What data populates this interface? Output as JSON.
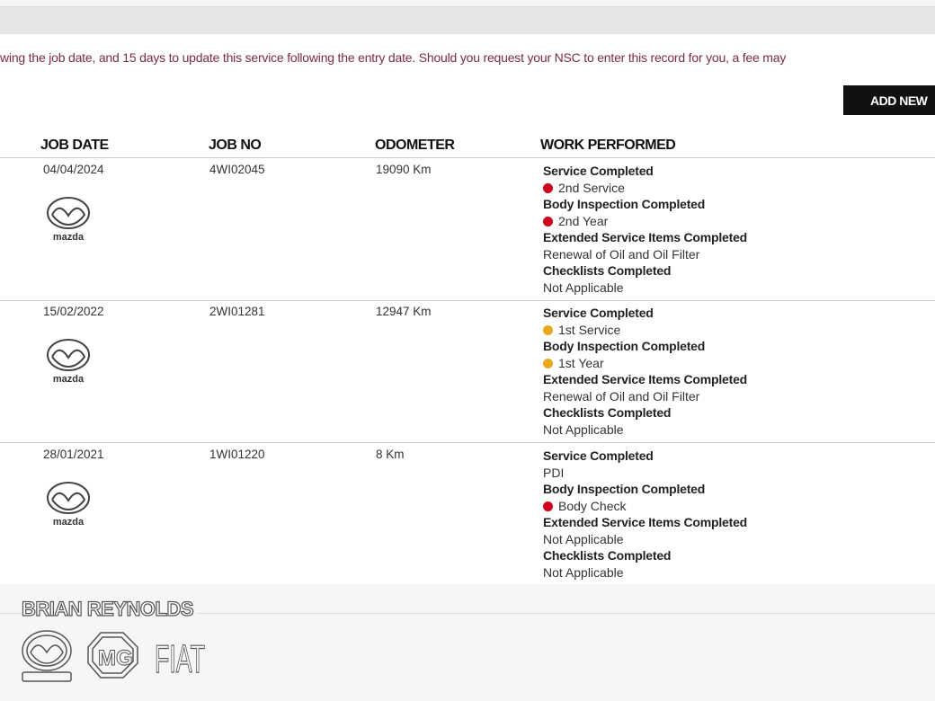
{
  "notice": "wing the job date, and 15 days to update this service following the entry date. Should you request your NSC to enter this record for you, a fee may",
  "add_button": "ADD NEW",
  "columns": [
    "JOB DATE",
    "JOB NO",
    "ODOMETER",
    "WORK PERFORMED"
  ],
  "colors": {
    "red": "#d0021b",
    "amber": "#e8a820",
    "notice": "#7a2a48"
  },
  "rows": [
    {
      "date": "04/04/2024",
      "job_no": "4WI02045",
      "odometer": "19090 Km",
      "logo": "mazda",
      "work": [
        {
          "t": "Service Completed",
          "bold": true
        },
        {
          "t": "2nd Service",
          "dot": "red"
        },
        {
          "t": "Body Inspection Completed",
          "bold": true
        },
        {
          "t": "2nd Year",
          "dot": "red"
        },
        {
          "t": "Extended Service Items Completed",
          "bold": true
        },
        {
          "t": "Renewal of Oil and Oil Filter"
        },
        {
          "t": "Checklists Completed",
          "bold": true
        },
        {
          "t": "Not Applicable"
        }
      ]
    },
    {
      "date": "15/02/2022",
      "job_no": "2WI01281",
      "odometer": "12947 Km",
      "logo": "mazda",
      "work": [
        {
          "t": "Service Completed",
          "bold": true
        },
        {
          "t": "1st Service",
          "dot": "amber"
        },
        {
          "t": "Body Inspection Completed",
          "bold": true
        },
        {
          "t": "1st Year",
          "dot": "amber"
        },
        {
          "t": "Extended Service Items Completed",
          "bold": true
        },
        {
          "t": "Renewal of Oil and Oil Filter"
        },
        {
          "t": "Checklists Completed",
          "bold": true
        },
        {
          "t": "Not Applicable"
        }
      ]
    },
    {
      "date": "28/01/2021",
      "job_no": "1WI01220",
      "odometer": "8 Km",
      "logo": "mazda",
      "work": [
        {
          "t": "Service Completed",
          "bold": true
        },
        {
          "t": "PDI"
        },
        {
          "t": "Body Inspection Completed",
          "bold": true
        },
        {
          "t": "Body Check",
          "dot": "red"
        },
        {
          "t": "Extended Service Items Completed",
          "bold": true
        },
        {
          "t": "Not Applicable"
        },
        {
          "t": "Checklists Completed",
          "bold": true
        },
        {
          "t": "Not Applicable"
        }
      ]
    }
  ],
  "footer": {
    "brand": "BRIAN REYNOLDS",
    "logos": [
      "mazda",
      "MG",
      "FIAT"
    ]
  }
}
